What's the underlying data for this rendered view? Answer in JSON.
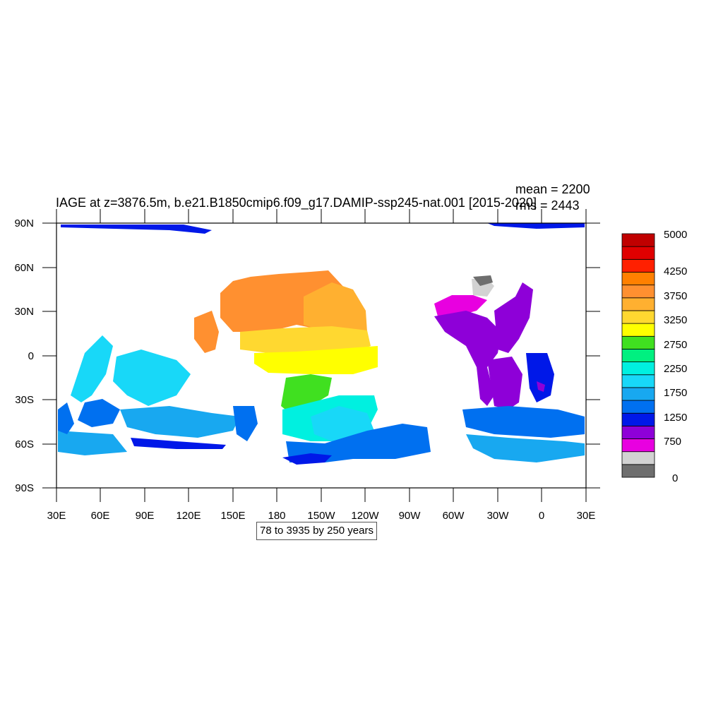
{
  "title": "IAGE at z=3876.5m, b.e21.B1850cmip6.f09_g17.DAMIP-ssp245-nat.001 [2015-2020]",
  "stats": {
    "mean": "mean = 2200",
    "rms": "rms = 2443"
  },
  "info": "78 to 3935 by 250 years",
  "lat_labels": [
    "90N",
    "60N",
    "30N",
    "0",
    "30S",
    "60S",
    "90S"
  ],
  "lon_labels": [
    "30E",
    "60E",
    "90E",
    "120E",
    "150E",
    "180",
    "150W",
    "120W",
    "90W",
    "60W",
    "30W",
    "0",
    "30E"
  ],
  "colorbar": {
    "labels": [
      "5000",
      "4250",
      "3750",
      "3250",
      "2750",
      "2250",
      "1750",
      "1250",
      "750",
      "0"
    ],
    "colors": [
      "#6e6e6e",
      "#d2d2d2",
      "#e800e0",
      "#8e00d8",
      "#0018e8",
      "#0070f0",
      "#18a8f0",
      "#18d8f8",
      "#00f0e0",
      "#00f080",
      "#40e020",
      "#ffff00",
      "#ffd830",
      "#ffb030",
      "#ff9030",
      "#ff8000",
      "#ff2000",
      "#e00000",
      "#c00000"
    ]
  }
}
